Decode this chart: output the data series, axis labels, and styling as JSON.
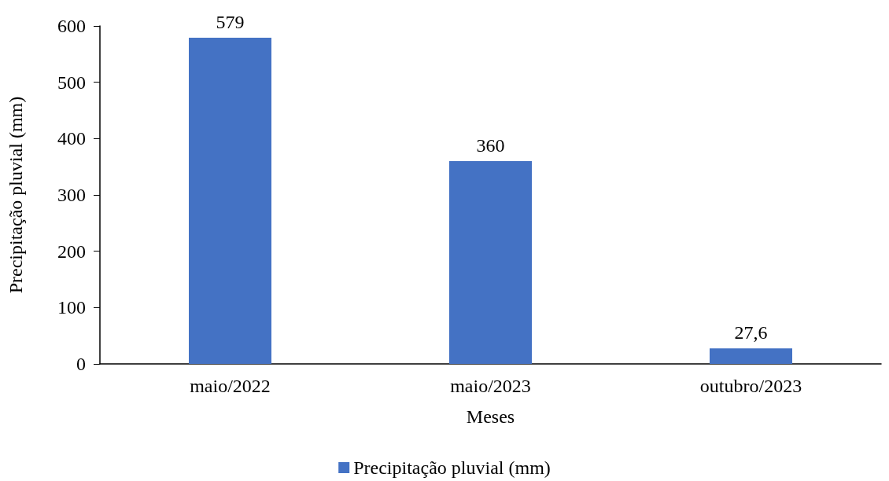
{
  "chart_data": {
    "type": "bar",
    "xlabel": "Meses",
    "ylabel": "Precipitação pluvial (mm)",
    "categories": [
      "maio/2022",
      "maio/2023",
      "outubro/2023"
    ],
    "series": [
      {
        "name": "Precipitação pluvial (mm)",
        "color": "#4472c4",
        "values": [
          579,
          360,
          27.6
        ],
        "value_labels": [
          "579",
          "360",
          "27,6"
        ]
      }
    ],
    "ylim": [
      0,
      600
    ],
    "yticks": [
      0,
      100,
      200,
      300,
      400,
      500,
      600
    ],
    "grid": false,
    "legend": "bottom"
  }
}
